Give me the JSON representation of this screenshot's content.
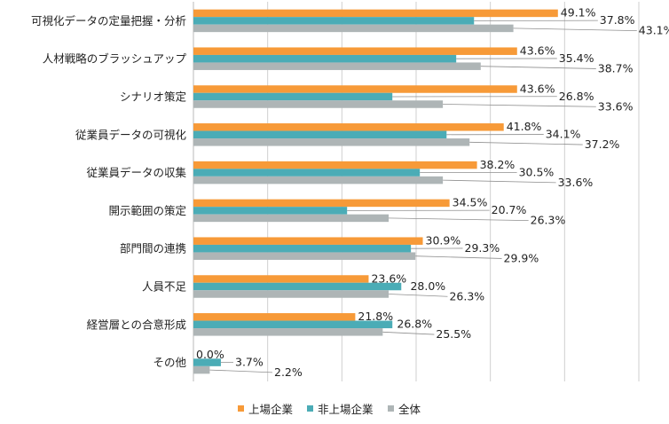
{
  "chart_data": {
    "type": "bar",
    "orientation": "horizontal",
    "categories": [
      "可視化データの定量把握・分析",
      "人材戦略のブラッシュアップ",
      "シナリオ策定",
      "従業員データの可視化",
      "従業員データの収集",
      "開示範囲の策定",
      "部門間の連携",
      "人員不足",
      "経営層との合意形成",
      "その他"
    ],
    "series": [
      {
        "name": "上場企業",
        "color": "#f79a38",
        "values": [
          49.1,
          43.6,
          43.6,
          41.8,
          38.2,
          34.5,
          30.9,
          23.6,
          21.8,
          0.0
        ]
      },
      {
        "name": "非上場企業",
        "color": "#4bacb6",
        "values": [
          37.8,
          35.4,
          26.8,
          34.1,
          30.5,
          20.7,
          29.3,
          28.0,
          26.8,
          3.7
        ]
      },
      {
        "name": "全体",
        "color": "#aeb5b6",
        "values": [
          43.1,
          38.7,
          33.6,
          37.2,
          33.6,
          26.3,
          29.9,
          26.3,
          25.5,
          2.2
        ]
      }
    ],
    "data_labels": [
      [
        "49.1%",
        "37.8%",
        "43.1%"
      ],
      [
        "43.6%",
        "35.4%",
        "38.7%"
      ],
      [
        "43.6%",
        "26.8%",
        "33.6%"
      ],
      [
        "41.8%",
        "34.1%",
        "37.2%"
      ],
      [
        "38.2%",
        "30.5%",
        "33.6%"
      ],
      [
        "34.5%",
        "20.7%",
        "26.3%"
      ],
      [
        "30.9%",
        "29.3%",
        "29.9%"
      ],
      [
        "23.6%",
        "28.0%",
        "26.3%"
      ],
      [
        "21.8%",
        "26.8%",
        "25.5%"
      ],
      [
        "0.0%",
        "3.7%",
        "2.2%"
      ]
    ],
    "xlim": [
      0,
      60
    ],
    "grid": true,
    "legend_position": "bottom",
    "title": "",
    "xlabel": "",
    "ylabel": ""
  }
}
